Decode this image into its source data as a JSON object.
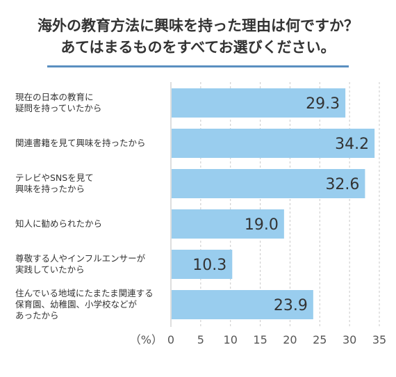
{
  "title_lines": [
    "海外の教育方法に興味を持った理由は何ですか？",
    "あてはまるものをすべてお選びください。"
  ],
  "colors": {
    "bar": "#99cdee",
    "rule": "#5a8fc0",
    "text": "#333333",
    "grid": "#c8c8c8"
  },
  "chart_data": {
    "type": "bar",
    "orientation": "horizontal",
    "categories": [
      [
        "現在の日本の教育に",
        "疑問を持っていたから"
      ],
      [
        "関連書籍を見て興味を持ったから"
      ],
      [
        "テレビやSNSを見て",
        "興味を持ったから"
      ],
      [
        "知人に勧められたから"
      ],
      [
        "尊敬する人やインフルエンサーが",
        "実践していたから"
      ],
      [
        "住んでいる地域にたまたま関連する",
        "保育園、幼稚園、小学校などが",
        "あったから"
      ]
    ],
    "values": [
      29.3,
      34.2,
      32.6,
      19.0,
      10.3,
      23.9
    ],
    "value_labels": [
      "29.3",
      "34.2",
      "32.6",
      "19.0",
      "10.3",
      "23.9"
    ],
    "xunit_label": "（%）",
    "xticks": [
      0,
      5,
      10,
      15,
      20,
      25,
      30,
      35
    ],
    "xlim": [
      0,
      35
    ],
    "grid": true
  }
}
